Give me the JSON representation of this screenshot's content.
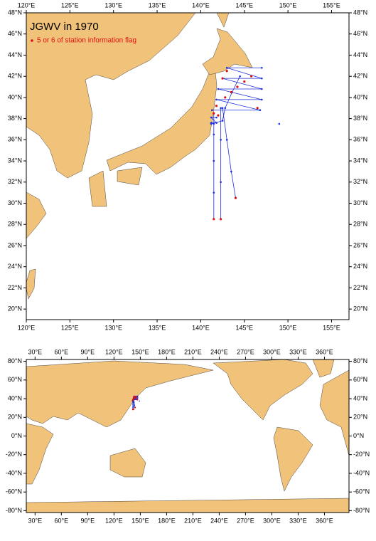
{
  "title": "JGWV in 1970",
  "legend": "5 or 6 of station information flag",
  "regional_map": {
    "lonlim": [
      120,
      157
    ],
    "latlim": [
      19,
      48
    ],
    "lonticks": [
      {
        "value": 120,
        "label": "120°E"
      },
      {
        "value": 125,
        "label": "125°E"
      },
      {
        "value": 130,
        "label": "130°E"
      },
      {
        "value": 135,
        "label": "135°E"
      },
      {
        "value": 140,
        "label": "140°E"
      },
      {
        "value": 145,
        "label": "145°E"
      },
      {
        "value": 150,
        "label": "150°E"
      },
      {
        "value": 155,
        "label": "155°E"
      }
    ],
    "latticks": [
      {
        "value": 20,
        "label": "20°N"
      },
      {
        "value": 22,
        "label": "22°N"
      },
      {
        "value": 24,
        "label": "24°N"
      },
      {
        "value": 26,
        "label": "26°N"
      },
      {
        "value": 28,
        "label": "28°N"
      },
      {
        "value": 30,
        "label": "30°N"
      },
      {
        "value": 32,
        "label": "32°N"
      },
      {
        "value": 34,
        "label": "34°N"
      },
      {
        "value": 36,
        "label": "36°N"
      },
      {
        "value": 38,
        "label": "38°N"
      },
      {
        "value": 40,
        "label": "40°N"
      },
      {
        "value": 42,
        "label": "42°N"
      },
      {
        "value": 44,
        "label": "44°N"
      },
      {
        "value": 46,
        "label": "46°N"
      },
      {
        "value": 48,
        "label": "48°N"
      }
    ]
  },
  "global_map": {
    "lonlim": [
      20,
      388
    ],
    "latlim": [
      -82,
      82
    ],
    "lonticks": [
      {
        "value": 30,
        "label": "30°E"
      },
      {
        "value": 60,
        "label": "60°E"
      },
      {
        "value": 90,
        "label": "90°E"
      },
      {
        "value": 120,
        "label": "120°E"
      },
      {
        "value": 150,
        "label": "150°E"
      },
      {
        "value": 180,
        "label": "180°E"
      },
      {
        "value": 210,
        "label": "210°E"
      },
      {
        "value": 240,
        "label": "240°E"
      },
      {
        "value": 270,
        "label": "270°E"
      },
      {
        "value": 300,
        "label": "300°E"
      },
      {
        "value": 330,
        "label": "330°E"
      },
      {
        "value": 360,
        "label": "360°E"
      }
    ],
    "latticks": [
      {
        "value": -80,
        "label": "-80°N"
      },
      {
        "value": -60,
        "label": "-60°N"
      },
      {
        "value": -40,
        "label": "-40°N"
      },
      {
        "value": -20,
        "label": "-20°N"
      },
      {
        "value": 0,
        "label": "0°N"
      },
      {
        "value": 20,
        "label": "20°N"
      },
      {
        "value": 40,
        "label": "40°N"
      },
      {
        "value": 60,
        "label": "60°N"
      },
      {
        "value": 80,
        "label": "80°N"
      }
    ]
  },
  "track_color": "#1f2fd8",
  "flag_color": "#e01010",
  "tracks": [
    {
      "lon": [
        141.5,
        141.5,
        141.5,
        141.5,
        141.5,
        141.5
      ],
      "lat": [
        38.5,
        37.5,
        36.5,
        34,
        31,
        28.5
      ]
    },
    {
      "lon": [
        142.3,
        142.3,
        142.3,
        142.3
      ],
      "lat": [
        39,
        36,
        32,
        28.5
      ]
    },
    {
      "lon": [
        142.5,
        143,
        143.5,
        144
      ],
      "lat": [
        39,
        36,
        33,
        30.5
      ]
    },
    {
      "lon": [
        141.3,
        146.8,
        141.8,
        147,
        142,
        147,
        142.5,
        147,
        143,
        147
      ],
      "lat": [
        38.8,
        38.8,
        39.8,
        39.8,
        40.8,
        40.8,
        41.8,
        41.8,
        42.8,
        42.8
      ]
    },
    {
      "lon": [
        141.2,
        142.5,
        142.8,
        143.6,
        144.5
      ],
      "lat": [
        37.5,
        37.8,
        39,
        40.5,
        42
      ]
    },
    {
      "lon": [
        141.2,
        141.8,
        141.2,
        141.8
      ],
      "lat": [
        37.6,
        37.6,
        38.1,
        38.1
      ]
    },
    {
      "lon": [
        149
      ],
      "lat": [
        37.5
      ]
    }
  ],
  "flagged": {
    "lon": [
      141.5,
      142.3,
      144,
      141.8,
      142.8,
      143.5,
      144.2,
      145,
      145.8,
      142.5,
      143,
      146.5,
      141.5,
      142
    ],
    "lat": [
      28.5,
      28.5,
      30.5,
      39.2,
      40,
      40.5,
      41,
      41.5,
      42,
      41.8,
      42.5,
      39,
      38.5,
      38.3
    ]
  }
}
